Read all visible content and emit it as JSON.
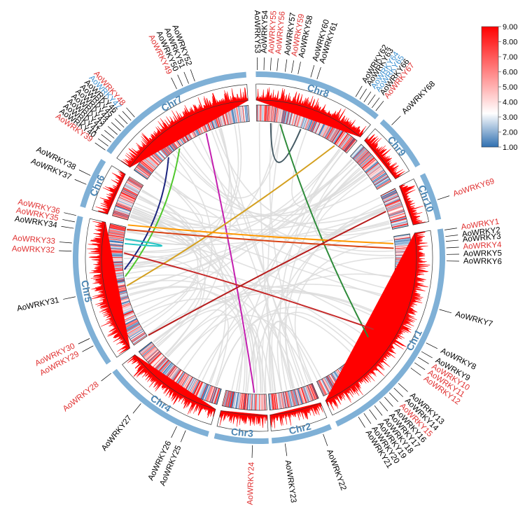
{
  "diagram": {
    "colors": {
      "chromosome_band": "#7fb0d6",
      "chromosome_label": "#4b86b4",
      "histogram": "#ff0000",
      "gene_highlight": "#e03030",
      "gene_blue": "#3a8fd0",
      "gene_default": "#000000",
      "background_links": "#dcdcdc"
    },
    "chromosomes": [
      {
        "name": "Chr1",
        "start_deg": 81,
        "end_deg": 155
      },
      {
        "name": "Chr2",
        "start_deg": 157,
        "end_deg": 176
      },
      {
        "name": "Chr3",
        "start_deg": 177,
        "end_deg": 194
      },
      {
        "name": "Chr4",
        "start_deg": 196,
        "end_deg": 232
      },
      {
        "name": "Chr5",
        "start_deg": 235,
        "end_deg": 283
      },
      {
        "name": "Chr6",
        "start_deg": 286,
        "end_deg": 302
      },
      {
        "name": "Chr7",
        "start_deg": 305,
        "end_deg": 356
      },
      {
        "name": "Chr8",
        "start_deg": 359,
        "end_deg": 400
      },
      {
        "name": "Chr9",
        "start_deg": 402,
        "end_deg": 420
      },
      {
        "name": "Chr10",
        "start_deg": 423,
        "end_deg": 438
      }
    ],
    "genes": [
      {
        "label": "AoWRKY1",
        "color": "red",
        "pos_deg": 81.5
      },
      {
        "label": "AoWRKY2",
        "color": "black",
        "pos_deg": 83.5
      },
      {
        "label": "AoWRKY3",
        "color": "black",
        "pos_deg": 85
      },
      {
        "label": "AoWRKY4",
        "color": "red",
        "pos_deg": 87
      },
      {
        "label": "AoWRKY5",
        "color": "black",
        "pos_deg": 89
      },
      {
        "label": "AoWRKY6",
        "color": "black",
        "pos_deg": 91
      },
      {
        "label": "AoWRKY7",
        "color": "black",
        "pos_deg": 106
      },
      {
        "label": "AoWRKY8",
        "color": "black",
        "pos_deg": 117
      },
      {
        "label": "AoWRKY9",
        "color": "black",
        "pos_deg": 120
      },
      {
        "label": "AoWRKY10",
        "color": "red",
        "pos_deg": 122
      },
      {
        "label": "AoWRKY11",
        "color": "red",
        "pos_deg": 124
      },
      {
        "label": "AoWRKY12",
        "color": "red",
        "pos_deg": 126
      },
      {
        "label": "AoWRKY13",
        "color": "black",
        "pos_deg": 132
      },
      {
        "label": "AoWRKY14",
        "color": "black",
        "pos_deg": 134
      },
      {
        "label": "AoWRKY15",
        "color": "red",
        "pos_deg": 136
      },
      {
        "label": "AoWRKY16",
        "color": "black",
        "pos_deg": 138
      },
      {
        "label": "AoWRKY17",
        "color": "black",
        "pos_deg": 140
      },
      {
        "label": "AoWRKY18",
        "color": "black",
        "pos_deg": 142
      },
      {
        "label": "AoWRKY19",
        "color": "black",
        "pos_deg": 144
      },
      {
        "label": "AoWRKY20",
        "color": "black",
        "pos_deg": 146
      },
      {
        "label": "AoWRKY21",
        "color": "black",
        "pos_deg": 148
      },
      {
        "label": "AoWRKY22",
        "color": "black",
        "pos_deg": 160
      },
      {
        "label": "AoWRKY23",
        "color": "black",
        "pos_deg": 172
      },
      {
        "label": "AoWRKY24",
        "color": "red",
        "pos_deg": 182
      },
      {
        "label": "AoWRKY25",
        "color": "black",
        "pos_deg": 203
      },
      {
        "label": "AoWRKY26",
        "color": "black",
        "pos_deg": 206
      },
      {
        "label": "AoWRKY27",
        "color": "black",
        "pos_deg": 219
      },
      {
        "label": "AoWRKY28",
        "color": "red",
        "pos_deg": 232
      },
      {
        "label": "AoWRKY29",
        "color": "red",
        "pos_deg": 242
      },
      {
        "label": "AoWRKY30",
        "color": "red",
        "pos_deg": 244.5
      },
      {
        "label": "AoWRKY31",
        "color": "black",
        "pos_deg": 258
      },
      {
        "label": "AoWRKY32",
        "color": "red",
        "pos_deg": 272
      },
      {
        "label": "AoWRKY33",
        "color": "red",
        "pos_deg": 274.5
      },
      {
        "label": "AoWRKY34",
        "color": "black",
        "pos_deg": 279
      },
      {
        "label": "AoWRKY35",
        "color": "red",
        "pos_deg": 281
      },
      {
        "label": "AoWRKY36",
        "color": "red",
        "pos_deg": 283
      },
      {
        "label": "AoWRKY37",
        "color": "black",
        "pos_deg": 293
      },
      {
        "label": "AoWRKY38",
        "color": "black",
        "pos_deg": 296
      },
      {
        "label": "AoWRKY39",
        "color": "red",
        "pos_deg": 305
      },
      {
        "label": "AoWRKY40",
        "color": "black",
        "pos_deg": 306.5
      },
      {
        "label": "AoWRKY41",
        "color": "black",
        "pos_deg": 308
      },
      {
        "label": "AoWRKY42",
        "color": "black",
        "pos_deg": 309.5
      },
      {
        "label": "AoWRKY43",
        "color": "black",
        "pos_deg": 311
      },
      {
        "label": "AoWRKY44",
        "color": "black",
        "pos_deg": 312.5
      },
      {
        "label": "AoWRKY45",
        "color": "black",
        "pos_deg": 314
      },
      {
        "label": "AoWRKY46",
        "color": "black",
        "pos_deg": 315.5
      },
      {
        "label": "AoWRKY47",
        "color": "blue",
        "pos_deg": 317
      },
      {
        "label": "AoWRKY48",
        "color": "red",
        "pos_deg": 318.5
      },
      {
        "label": "AoWRKY49",
        "color": "red",
        "pos_deg": 334
      },
      {
        "label": "AoWRKY50",
        "color": "black",
        "pos_deg": 336
      },
      {
        "label": "AoWRKY51",
        "color": "black",
        "pos_deg": 338
      },
      {
        "label": "AoWRKY52",
        "color": "black",
        "pos_deg": 340
      },
      {
        "label": "AoWRKY53",
        "color": "black",
        "pos_deg": 359.5
      },
      {
        "label": "AoWRKY54",
        "color": "black",
        "pos_deg": 361.5
      },
      {
        "label": "AoWRKY55",
        "color": "red",
        "pos_deg": 363.5
      },
      {
        "label": "AoWRKY56",
        "color": "red",
        "pos_deg": 365.5
      },
      {
        "label": "AoWRKY57",
        "color": "black",
        "pos_deg": 368
      },
      {
        "label": "AoWRKY58",
        "color": "black",
        "pos_deg": 372
      },
      {
        "label": "AoWRKY59",
        "color": "red",
        "pos_deg": 370
      },
      {
        "label": "AoWRKY60",
        "color": "black",
        "pos_deg": 376
      },
      {
        "label": "AoWRKY61",
        "color": "black",
        "pos_deg": 378
      },
      {
        "label": "AoWRKY62",
        "color": "black",
        "pos_deg": 391
      },
      {
        "label": "AoWRKY63",
        "color": "black",
        "pos_deg": 392.5
      },
      {
        "label": "AoWRKY64",
        "color": "blue",
        "pos_deg": 394
      },
      {
        "label": "AoWRKY65",
        "color": "blue",
        "pos_deg": 395.5
      },
      {
        "label": "AoWRKY66",
        "color": "black",
        "pos_deg": 397
      },
      {
        "label": "AoWRKY67",
        "color": "red",
        "pos_deg": 398.5
      },
      {
        "label": "AoWRKY68",
        "color": "black",
        "pos_deg": 405
      },
      {
        "label": "AoWRKY69",
        "color": "red",
        "pos_deg": 432
      }
    ],
    "links": [
      {
        "from_deg": 318,
        "to_deg": 265,
        "color": "#1a237e"
      },
      {
        "from_deg": 324,
        "to_deg": 262,
        "color": "#4fc82b"
      },
      {
        "from_deg": 337,
        "to_deg": 182,
        "color": "#c41fb0"
      },
      {
        "from_deg": 365,
        "to_deg": 378,
        "color": "#455a64"
      },
      {
        "from_deg": 369,
        "to_deg": 126,
        "color": "#2e8b3a"
      },
      {
        "from_deg": 394,
        "to_deg": 258,
        "color": "#d4a020"
      },
      {
        "from_deg": 284,
        "to_deg": 84,
        "color": "#ff9800"
      },
      {
        "from_deg": 282,
        "to_deg": 86,
        "color": "#d84315"
      },
      {
        "from_deg": 276,
        "to_deg": 278,
        "color": "#26c6c6"
      },
      {
        "from_deg": 272,
        "to_deg": 122,
        "color": "#c62828"
      },
      {
        "from_deg": 430,
        "to_deg": 235,
        "color": "#b71c1c"
      }
    ],
    "color_scale": {
      "ticks": [
        "9.00",
        "8.00",
        "7.00",
        "6.00",
        "5.00",
        "4.00",
        "3.00",
        "2.00",
        "1.00"
      ],
      "colors": [
        "#2f6fb0",
        "#ffffff",
        "#ff0000"
      ]
    }
  }
}
